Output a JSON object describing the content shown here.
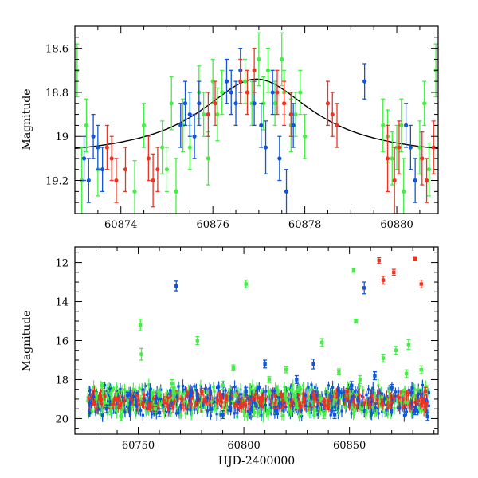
{
  "chart_data": [
    {
      "type": "scatter",
      "title": "",
      "xlabel": "",
      "ylabel": "Magnitude",
      "xlim": [
        60873.0,
        60880.9
      ],
      "ylim": [
        19.35,
        18.5
      ],
      "y_inverted": true,
      "grid": false,
      "x_ticks": [
        60874,
        60876,
        60878,
        60880
      ],
      "x_tick_labels": [
        "60874",
        "60876",
        "60878",
        "60880"
      ],
      "y_ticks": [
        18.6,
        18.8,
        19,
        19.2
      ],
      "y_tick_labels": [
        "18.6",
        "18.8",
        "19",
        "19.2"
      ],
      "colors": {
        "green": "#44ee44",
        "blue": "#1155dd",
        "red": "#ee3322"
      },
      "model_curve": {
        "type": "lorentzian",
        "peak_x": 60876.95,
        "peak_mag": 18.74,
        "baseline_mag": 19.1,
        "width_days": 1.5,
        "color": "#000000"
      },
      "series": [
        {
          "color": "green",
          "x": [
            60873.05,
            60873.15,
            60873.25,
            60873.5,
            60874.3,
            60874.5,
            60874.9,
            60875.0,
            60875.1,
            60875.2,
            60875.35,
            60875.5,
            60875.7,
            60875.8,
            60875.9,
            60876.0,
            60876.1,
            60876.2,
            60876.7,
            60876.85,
            60877.0,
            60877.1,
            60877.2,
            60877.35,
            60877.5,
            60877.55,
            60877.7,
            60877.8,
            60877.9,
            60878.0,
            60879.7,
            60879.8,
            60879.9,
            60880.0,
            60880.1,
            60880.15,
            60880.5,
            60880.6,
            60880.7,
            60880.85
          ],
          "y": [
            18.7,
            19.2,
            18.95,
            19.15,
            19.25,
            18.95,
            19.05,
            19.15,
            18.85,
            19.25,
            18.95,
            19.05,
            18.8,
            18.9,
            19.1,
            18.75,
            18.9,
            18.8,
            18.75,
            18.85,
            18.65,
            18.85,
            18.7,
            18.85,
            18.65,
            18.8,
            18.95,
            18.9,
            18.8,
            19.0,
            18.95,
            19.0,
            19.1,
            19.05,
            18.95,
            19.25,
            19.05,
            18.85,
            19.15,
            18.7
          ],
          "err": [
            0.12,
            0.15,
            0.12,
            0.12,
            0.14,
            0.1,
            0.12,
            0.1,
            0.12,
            0.15,
            0.12,
            0.1,
            0.12,
            0.1,
            0.12,
            0.1,
            0.12,
            0.1,
            0.1,
            0.1,
            0.12,
            0.12,
            0.1,
            0.1,
            0.12,
            0.1,
            0.12,
            0.1,
            0.1,
            0.1,
            0.12,
            0.12,
            0.12,
            0.1,
            0.12,
            0.15,
            0.12,
            0.1,
            0.12,
            0.12
          ]
        },
        {
          "color": "blue",
          "x": [
            60873.2,
            60873.3,
            60873.4,
            60873.5,
            60873.6,
            60875.3,
            60875.4,
            60875.5,
            60875.6,
            60875.7,
            60876.3,
            60876.4,
            60876.5,
            60876.6,
            60876.9,
            60877.05,
            60877.15,
            60877.3,
            60877.45,
            60877.6,
            60877.75,
            60879.3,
            60880.2,
            60880.3,
            60880.4
          ],
          "y": [
            19.1,
            19.2,
            19.0,
            19.05,
            19.15,
            18.95,
            18.85,
            18.9,
            19.0,
            18.85,
            18.75,
            18.8,
            18.85,
            18.7,
            18.85,
            18.95,
            19.05,
            18.8,
            19.1,
            19.25,
            18.95,
            18.75,
            18.95,
            19.05,
            19.2
          ],
          "err": [
            0.1,
            0.1,
            0.1,
            0.1,
            0.1,
            0.1,
            0.1,
            0.1,
            0.1,
            0.1,
            0.1,
            0.1,
            0.1,
            0.1,
            0.1,
            0.1,
            0.12,
            0.1,
            0.1,
            0.1,
            0.1,
            0.08,
            0.1,
            0.1,
            0.1
          ]
        },
        {
          "color": "red",
          "x": [
            60873.7,
            60873.8,
            60873.9,
            60874.1,
            60874.6,
            60874.7,
            60874.8,
            60875.9,
            60876.05,
            60876.6,
            60876.75,
            60876.9,
            60877.4,
            60877.55,
            60877.7,
            60878.5,
            60878.6,
            60878.7,
            60879.8,
            60879.95,
            60880.05,
            60880.55,
            60880.65,
            60880.8
          ],
          "y": [
            19.05,
            19.1,
            19.2,
            19.15,
            19.1,
            19.2,
            19.15,
            18.9,
            18.85,
            18.75,
            18.8,
            18.7,
            18.8,
            18.85,
            18.9,
            18.85,
            18.9,
            18.95,
            19.1,
            19.2,
            19.05,
            19.1,
            19.2,
            19.05
          ],
          "err": [
            0.1,
            0.1,
            0.1,
            0.1,
            0.1,
            0.12,
            0.1,
            0.1,
            0.1,
            0.1,
            0.1,
            0.1,
            0.1,
            0.1,
            0.1,
            0.1,
            0.1,
            0.1,
            0.15,
            0.15,
            0.12,
            0.12,
            0.1,
            0.12
          ]
        }
      ]
    },
    {
      "type": "scatter",
      "title": "",
      "xlabel": "HJD-2400000",
      "ylabel": "Magnitude",
      "xlim": [
        60720,
        60892
      ],
      "ylim": [
        20.8,
        11.2
      ],
      "y_inverted": true,
      "grid": false,
      "x_ticks": [
        60750,
        60800,
        60850
      ],
      "x_tick_labels": [
        "60750",
        "60800",
        "60850"
      ],
      "y_ticks": [
        12,
        14,
        16,
        18,
        20
      ],
      "y_tick_labels": [
        "12",
        "14",
        "16",
        "18",
        "20"
      ],
      "baseline_band": {
        "x_range": [
          60726,
          60888
        ],
        "mag_center": 19.1
      },
      "series": [
        {
          "color": "green",
          "x": [
            60733,
            60737,
            60742,
            60751,
            60751.5,
            60758,
            60766,
            60778,
            60790,
            60795,
            60801,
            60805,
            60812,
            60820,
            60826,
            60837,
            60838,
            60845,
            60852,
            60853,
            60855,
            60866,
            60872,
            60877,
            60878,
            60884
          ],
          "y": [
            18.3,
            19.6,
            19.9,
            15.2,
            16.7,
            19.5,
            18.2,
            16.0,
            18.3,
            17.4,
            13.1,
            19.7,
            18.0,
            17.5,
            18.5,
            16.1,
            19.8,
            17.6,
            12.4,
            15.0,
            18.0,
            16.9,
            16.5,
            17.7,
            16.2,
            17.5
          ],
          "err": [
            0.15,
            0.2,
            0.2,
            0.3,
            0.3,
            0.2,
            0.2,
            0.2,
            0.2,
            0.15,
            0.2,
            0.2,
            0.15,
            0.15,
            0.15,
            0.2,
            0.2,
            0.15,
            0.1,
            0.1,
            0.2,
            0.2,
            0.2,
            0.2,
            0.25,
            0.2
          ]
        },
        {
          "color": "blue",
          "x": [
            60735,
            60745,
            60760,
            60768,
            60775,
            60790,
            60801,
            60810,
            60815,
            60825,
            60833,
            60843,
            60851,
            60857,
            60862,
            60870,
            60881,
            60887
          ],
          "y": [
            19.5,
            18.8,
            19.7,
            13.2,
            18.7,
            19.8,
            18.6,
            17.2,
            19.6,
            18.0,
            17.2,
            19.8,
            18.3,
            13.3,
            17.8,
            18.4,
            19.6,
            19.9
          ],
          "err": [
            0.2,
            0.15,
            0.2,
            0.25,
            0.15,
            0.2,
            0.2,
            0.2,
            0.2,
            0.2,
            0.25,
            0.2,
            0.2,
            0.3,
            0.2,
            0.15,
            0.2,
            0.2
          ]
        },
        {
          "color": "red",
          "x": [
            60729,
            60740,
            60755,
            60780,
            60796,
            60818,
            60840,
            60849,
            60864,
            60866,
            60871,
            60881,
            60884,
            60886
          ],
          "y": [
            19.2,
            19.0,
            19.4,
            18.6,
            19.3,
            18.8,
            19.4,
            18.6,
            11.9,
            12.9,
            12.5,
            11.8,
            13.1,
            18.6
          ],
          "err": [
            0.1,
            0.1,
            0.15,
            0.15,
            0.1,
            0.1,
            0.15,
            0.15,
            0.15,
            0.2,
            0.15,
            0.1,
            0.2,
            0.2
          ]
        }
      ]
    }
  ]
}
